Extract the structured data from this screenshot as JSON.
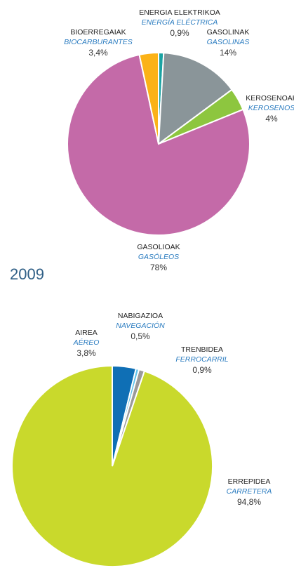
{
  "chart_data": [
    {
      "type": "pie",
      "categories": [
        "ENERGIA ELEKTRIKOA",
        "GASOLINAK",
        "KEROSENOAK",
        "GASOLIOAK",
        "BIOERREGAIAK"
      ],
      "subcategories": [
        "ENERGÍA ELÉCTRICA",
        "GASOLINAS",
        "KEROSENOS",
        "GASÓLEOS",
        "BIOCARBURANTES"
      ],
      "values": [
        0.9,
        14,
        4,
        78,
        3.4
      ],
      "value_labels": [
        "0,9%",
        "14%",
        "4%",
        "78%",
        "3,4%"
      ],
      "colors": [
        "#1aa3a3",
        "#8a9599",
        "#8dc63f",
        "#c46aa8",
        "#fbb217"
      ]
    },
    {
      "type": "pie",
      "title": "2009",
      "categories": [
        "AIREA",
        "NABIGAZIOA",
        "TRENBIDEA",
        "ERREPIDEA"
      ],
      "subcategories": [
        "AÉREO",
        "NAVEGACIÓN",
        "FERROCARRIL",
        "CARRETERA"
      ],
      "values": [
        3.8,
        0.5,
        0.9,
        94.8
      ],
      "value_labels": [
        "3,8%",
        "0,5%",
        "0,9%",
        "94,8%"
      ],
      "colors": [
        "#0f6fb5",
        "#5fc3ec",
        "#9a9a9a",
        "#c9d92c"
      ]
    }
  ]
}
